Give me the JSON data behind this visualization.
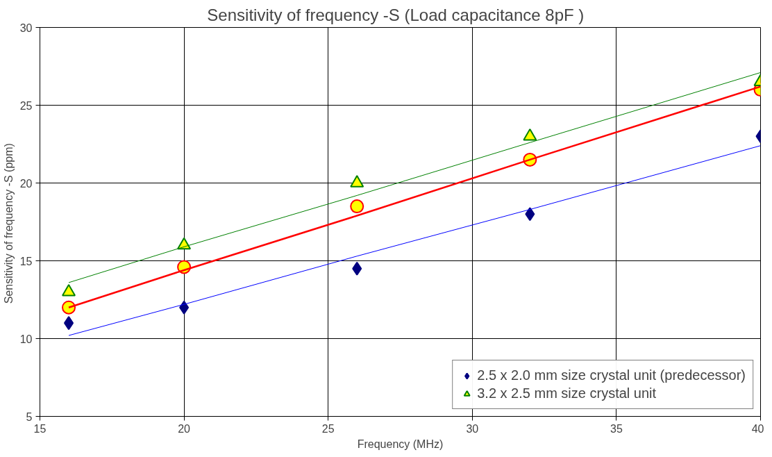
{
  "chart_data": {
    "type": "scatter",
    "title": "Sensitivity of frequency  -S (Load capacitance  8pF )",
    "xlabel": "Frequency (MHz)",
    "ylabel": "Sensitivity of frequency  -S (ppm)",
    "x": [
      16,
      20,
      26,
      32,
      40
    ],
    "series": [
      {
        "name": "2.5 x 2.0 mm size crystal unit (predecessor)",
        "color": "#000080",
        "marker": "diamond",
        "values": [
          11,
          12,
          14.5,
          18,
          23
        ]
      },
      {
        "color": "#ffff00",
        "marker": "circle",
        "values": [
          12,
          14.6,
          18.5,
          21.5,
          26
        ]
      },
      {
        "name": "3.2 x 2.5 mm size crystal unit",
        "color": "#ffff00",
        "marker": "triangle",
        "values": [
          13,
          16,
          20,
          23,
          26.5
        ]
      },
      {
        "type": "line",
        "color": "#0000ff",
        "values": [
          10.2,
          12.2,
          15.3,
          18.3,
          22.4
        ]
      },
      {
        "type": "line",
        "color": "#ff0000",
        "values": [
          12,
          14.4,
          17.9,
          21.5,
          26.2
        ]
      },
      {
        "type": "line",
        "color": "#008000",
        "values": [
          13.6,
          15.9,
          19.2,
          22.6,
          27.1
        ]
      }
    ],
    "xlim": [
      15,
      40
    ],
    "xticks": [
      15,
      20,
      25,
      30,
      35,
      40
    ],
    "ylim": [
      5,
      30
    ],
    "yticks": [
      5,
      10,
      15,
      20,
      25,
      30
    ],
    "grid": true,
    "legend": "bottom right"
  }
}
